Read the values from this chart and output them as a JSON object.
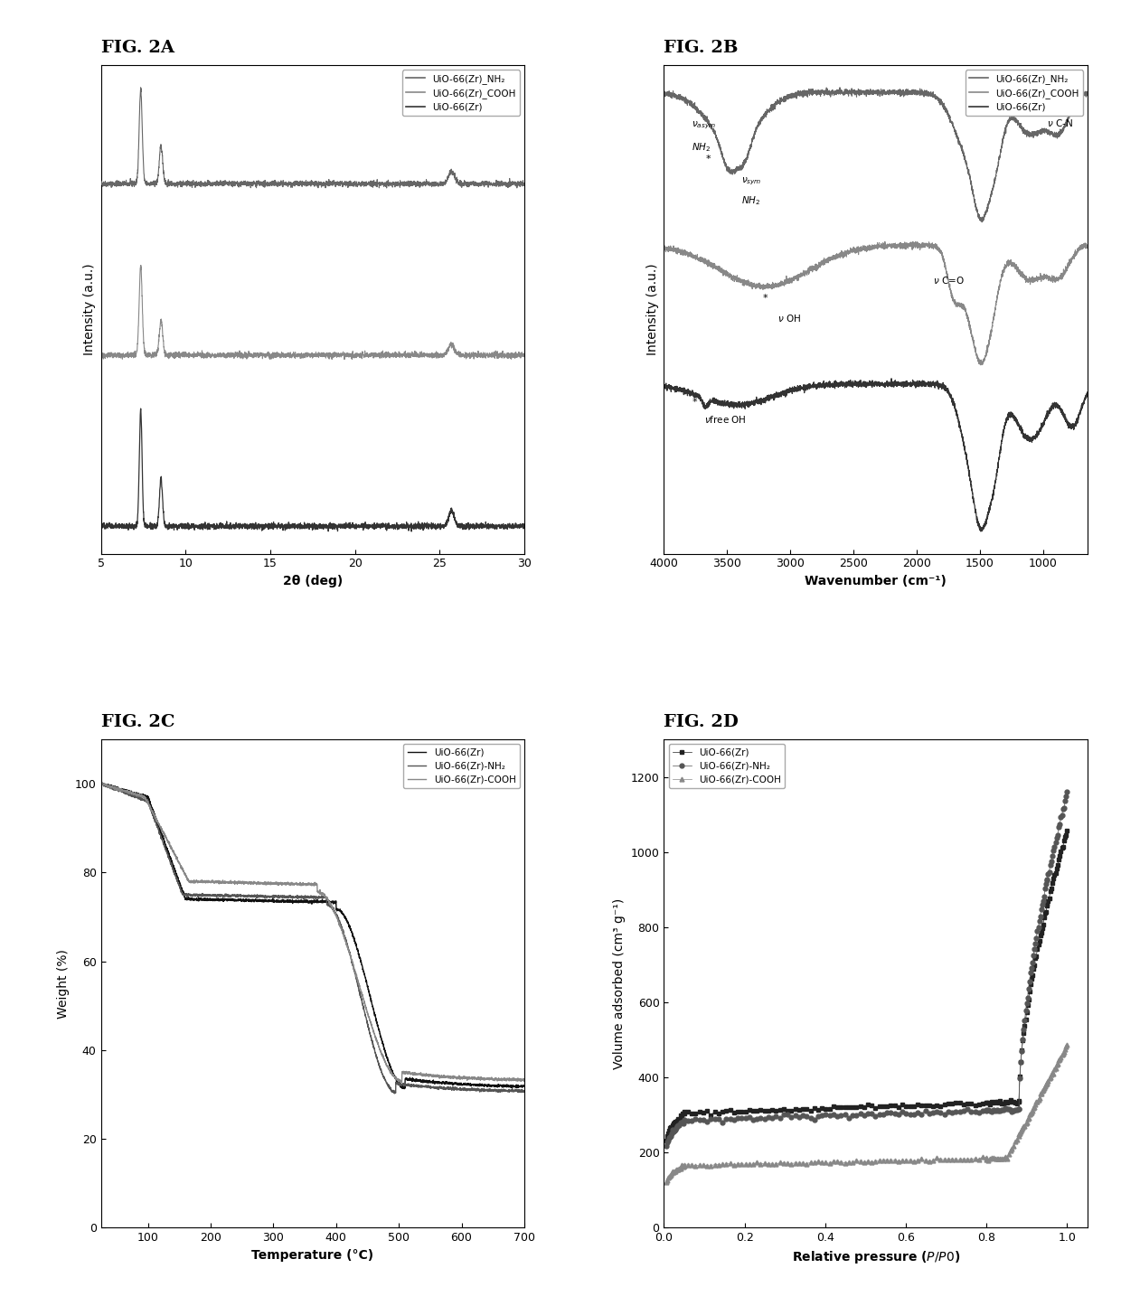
{
  "fig2a": {
    "title": "FIG. 2A",
    "xlabel": "2θ (deg)",
    "ylabel": "Intensity (a.u.)",
    "xlim": [
      5,
      30
    ],
    "xticks": [
      5,
      10,
      15,
      20,
      25,
      30
    ],
    "legend": [
      "UiO-66(Zr)_NH₂",
      "UiO-66(Zr)_COOH",
      "UiO-66(Zr)"
    ]
  },
  "fig2b": {
    "title": "FIG. 2B",
    "xlabel": "Wavenumber (cm⁻¹)",
    "ylabel": "Intensity (a.u.)",
    "xlim": [
      4000,
      650
    ],
    "xticks": [
      4000,
      3500,
      3000,
      2500,
      2000,
      1500,
      1000
    ],
    "legend": [
      "UiO-66(Zr)_NH₂",
      "UiO-66(Zr)_COOH",
      "UiO-66(Zr)"
    ]
  },
  "fig2c": {
    "title": "FIG. 2C",
    "xlabel": "Temperature (°C)",
    "ylabel": "Weight (%)",
    "xlim": [
      25,
      700
    ],
    "ylim": [
      0,
      110
    ],
    "xticks": [
      100,
      200,
      300,
      400,
      500,
      600,
      700
    ],
    "yticks": [
      0,
      20,
      40,
      60,
      80,
      100
    ],
    "legend": [
      "UiO-66(Zr)",
      "UiO-66(Zr)-NH₂",
      "UiO-66(Zr)-COOH"
    ]
  },
  "fig2d": {
    "title": "FIG. 2D",
    "xlabel": "Relative pressure (ρ/ρ0)",
    "ylabel": "Volume adsorbed (cm³ g⁻¹)",
    "xlim": [
      0.0,
      1.05
    ],
    "ylim": [
      0,
      1300
    ],
    "xticks": [
      0.0,
      0.2,
      0.4,
      0.6,
      0.8,
      1.0
    ],
    "yticks": [
      0,
      200,
      400,
      600,
      800,
      1000,
      1200
    ],
    "legend": [
      "UiO-66(Zr)",
      "UiO-66(Zr)-NH₂",
      "UiO-66(Zr)-COOH"
    ]
  }
}
